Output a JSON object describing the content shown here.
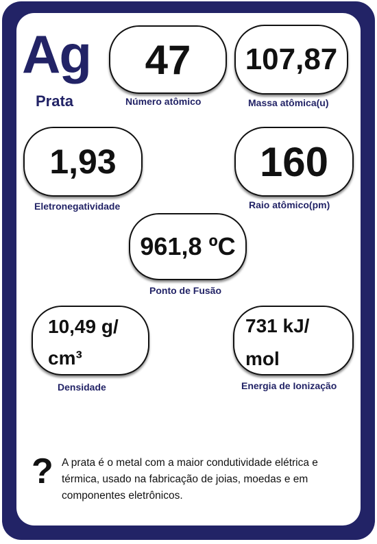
{
  "element": {
    "symbol": "Ag",
    "name": "Prata"
  },
  "properties": {
    "atomic_number": {
      "value": "47",
      "label": "Número atômico"
    },
    "atomic_mass": {
      "value": "107,87",
      "label": "Massa atômica(u)"
    },
    "electronegativity": {
      "value": "1,93",
      "label": "Eletronegatividade"
    },
    "atomic_radius": {
      "value": "160",
      "label": "Raio atômico(pm)"
    },
    "melting_point": {
      "value": "961,8 ºC",
      "label": "Ponto de Fusão"
    },
    "density": {
      "value_line1": "10,49 g/",
      "value_line2": "cm³",
      "label": "Densidade"
    },
    "ionization_energy": {
      "value_line1": "731 kJ/",
      "value_line2": "mol",
      "label": "Energia de Ionização"
    }
  },
  "fact": {
    "icon": "question-mark-icon",
    "symbol": "?",
    "text": "A prata é o metal com a maior condutividade elétrica e térmica, usado na fabricação de joias, moedas e em componentes eletrônicos."
  },
  "colors": {
    "frame": "#222366",
    "label_text": "#222366",
    "value_text": "#111111"
  }
}
